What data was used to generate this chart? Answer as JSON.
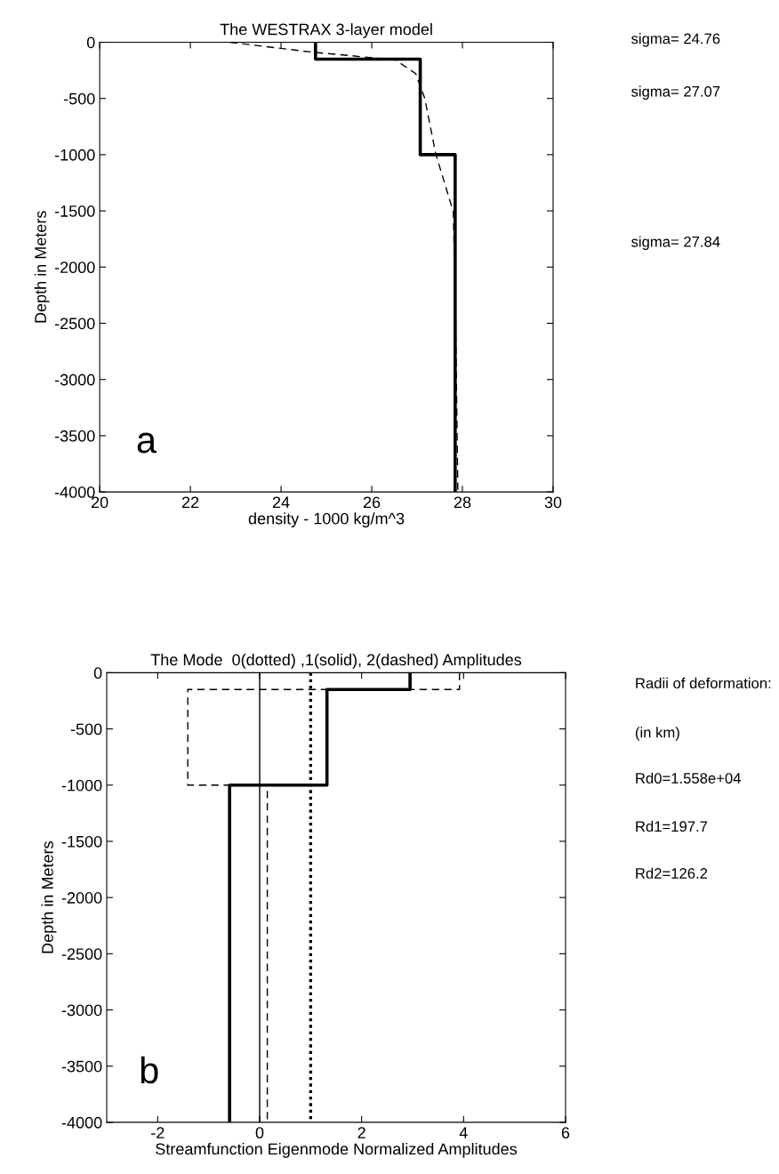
{
  "chart_data": [
    {
      "type": "line",
      "title": "The WESTRAX 3-layer model",
      "xlabel": "density - 1000 kg/m^3",
      "ylabel": "Depth in Meters",
      "xlim": [
        20,
        30
      ],
      "xticks": [
        20,
        22,
        24,
        26,
        28,
        30
      ],
      "ylim": [
        -4000,
        0
      ],
      "yticks": [
        -4000,
        -3500,
        -3000,
        -2500,
        -2000,
        -1500,
        -1000,
        -500,
        0
      ],
      "grid": false,
      "legend": false,
      "series": [
        {
          "color": "#000000",
          "line_style": "solid",
          "x": [
            24.76,
            24.76,
            27.07,
            27.07,
            27.84,
            27.84
          ],
          "values": [
            0,
            -150,
            -150,
            -1000,
            -1000,
            -4000
          ]
        },
        {
          "color": "#000000",
          "line_style": "dashed",
          "x": [
            22.87,
            24.69,
            26.52,
            26.97,
            27.17,
            27.41,
            27.8,
            27.85,
            27.9
          ],
          "values": [
            0,
            -88,
            -156,
            -279,
            -500,
            -990,
            -1510,
            -2500,
            -4000
          ]
        }
      ],
      "annotations": [
        "sigma= 24.76",
        "sigma= 27.07",
        "sigma= 27.84",
        "a"
      ]
    },
    {
      "type": "line",
      "title": "The Mode  0(dotted) ,1(solid), 2(dashed) Amplitudes",
      "xlabel": "Streamfunction Eigenmode Normalized Amplitudes",
      "ylabel": "Depth in Meters",
      "xlim": [
        -3,
        6
      ],
      "xticks": [
        -2,
        0,
        2,
        4,
        6
      ],
      "ylim": [
        -4000,
        0
      ],
      "yticks": [
        -4000,
        -3500,
        -3000,
        -2500,
        -2000,
        -1500,
        -1000,
        -500,
        0
      ],
      "grid": false,
      "legend": false,
      "ref_lines": [
        {
          "axis": "x",
          "value": 0,
          "color": "#000000",
          "line_style": "solid"
        }
      ],
      "series": [
        {
          "color": "#000000",
          "line_style": "dotted",
          "x": [
            1.0,
            1.0
          ],
          "values": [
            0,
            -4000
          ]
        },
        {
          "color": "#000000",
          "line_style": "solid",
          "x": [
            2.95,
            2.95,
            1.32,
            1.32,
            -0.59,
            -0.59
          ],
          "values": [
            0,
            -150,
            -150,
            -1000,
            -1000,
            -4000
          ]
        },
        {
          "color": "#000000",
          "line_style": "dashed",
          "x": [
            3.92,
            3.92,
            -1.41,
            -1.41,
            0.15,
            0.15
          ],
          "values": [
            0,
            -150,
            -150,
            -1000,
            -1000,
            -4000
          ]
        }
      ],
      "annotations": [
        "Radii of deformation:",
        "(in km)",
        "Rd0=1.558e+04",
        "Rd1=197.7",
        "Rd2=126.2",
        "b"
      ]
    }
  ]
}
